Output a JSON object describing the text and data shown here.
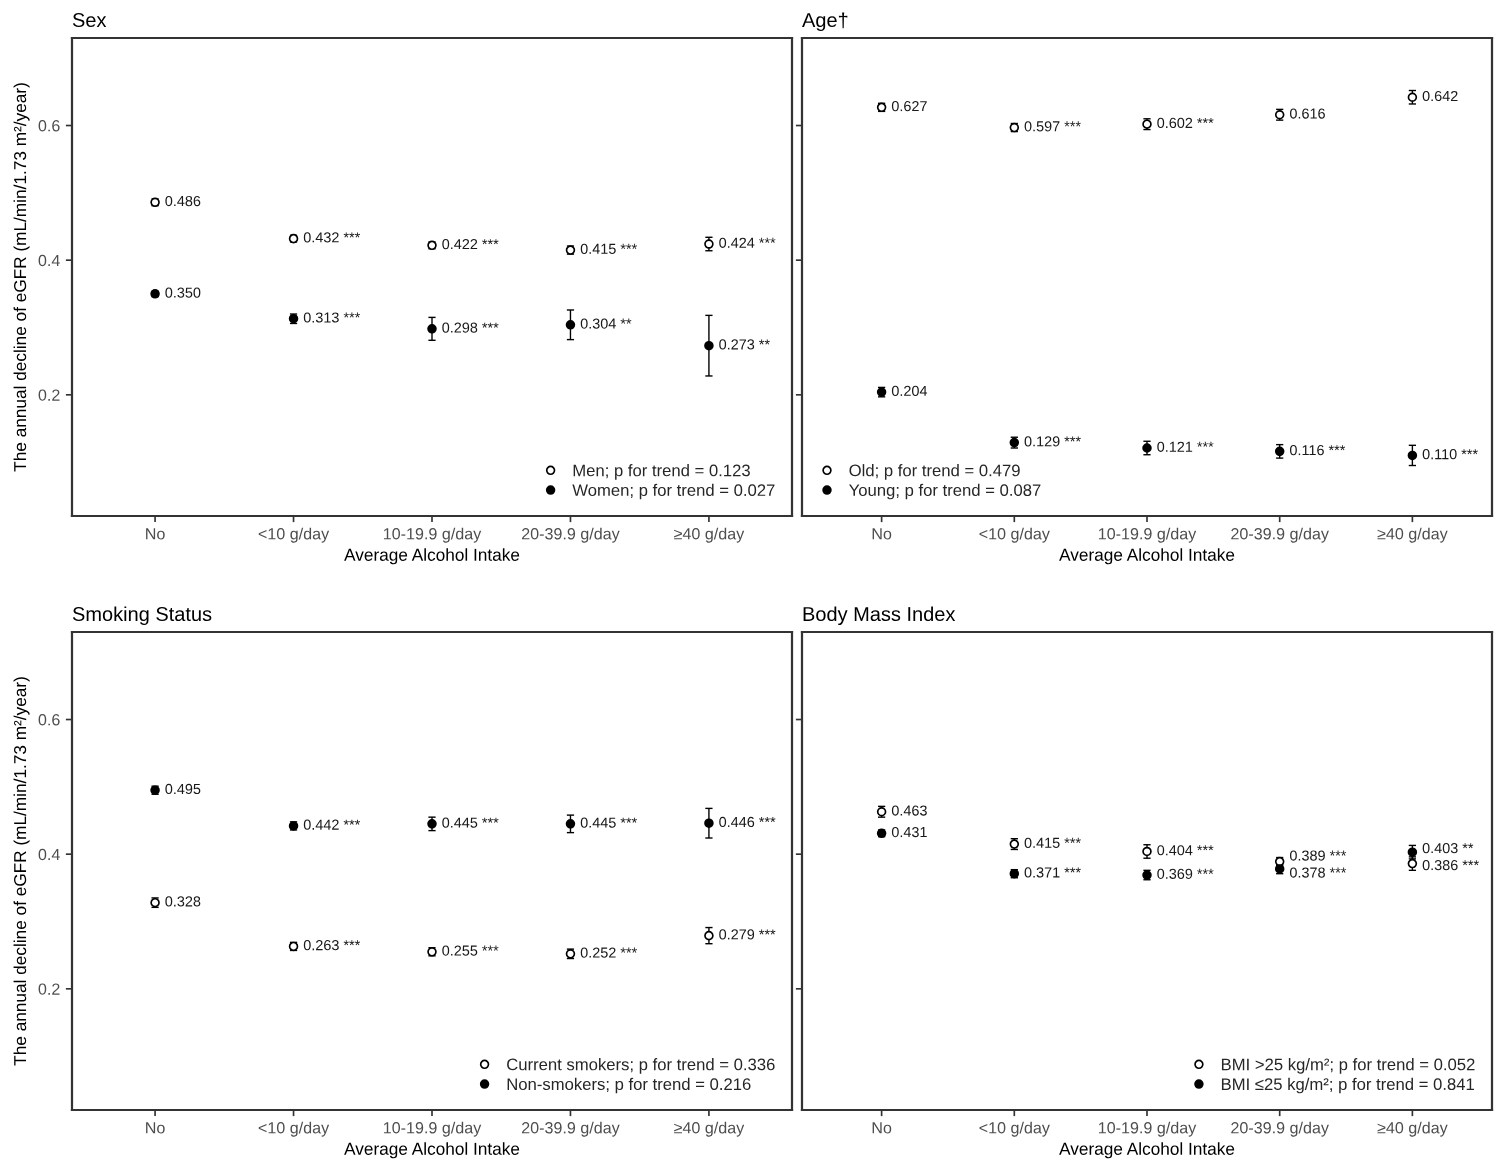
{
  "chart_data": [
    {
      "type": "scatter",
      "title": "Sex",
      "xlabel": "Average Alcohol Intake",
      "ylabel": "The annual decline of eGFR (mL/min/1.73 m²/year)",
      "categories": [
        "No",
        "<10 g/day",
        "10-19.9 g/day",
        "20-39.9 g/day",
        "≥40 g/day"
      ],
      "ylim": [
        0.02,
        0.73
      ],
      "yticks": [
        0.2,
        0.4,
        0.6
      ],
      "legend": "bottom right",
      "marker": "circle",
      "series": [
        {
          "name": "Men; p for trend = 0.123",
          "color": "#ffffff",
          "values": [
            0.486,
            0.432,
            0.422,
            0.415,
            0.424
          ],
          "errors": [
            0.005,
            0.005,
            0.005,
            0.006,
            0.01
          ],
          "value_labels": [
            "0.486",
            "0.432 ***",
            "0.422 ***",
            "0.415 ***",
            "0.424 ***"
          ]
        },
        {
          "name": "Women; p for trend = 0.027",
          "color": "#000000",
          "values": [
            0.35,
            0.313,
            0.298,
            0.304,
            0.273
          ],
          "errors": [
            0.004,
            0.007,
            0.017,
            0.022,
            0.045
          ],
          "value_labels": [
            "0.350",
            "0.313 ***",
            "0.298 ***",
            "0.304 **",
            "0.273 **"
          ]
        }
      ]
    },
    {
      "type": "scatter",
      "title": "Age†",
      "xlabel": "Average Alcohol Intake",
      "categories": [
        "No",
        "<10 g/day",
        "10-19.9 g/day",
        "20-39.9 g/day",
        "≥40 g/day"
      ],
      "ylim": [
        0.02,
        0.73
      ],
      "yticks": [
        0.2,
        0.4,
        0.6
      ],
      "tick_labels": "x",
      "legend": "bottom left",
      "marker": "circle",
      "series": [
        {
          "name": "Old; p for trend = 0.479",
          "color": "#ffffff",
          "values": [
            0.627,
            0.597,
            0.602,
            0.616,
            0.642
          ],
          "errors": [
            0.006,
            0.006,
            0.008,
            0.008,
            0.01
          ],
          "value_labels": [
            "0.627",
            "0.597 ***",
            "0.602 ***",
            "0.616",
            "0.642"
          ]
        },
        {
          "name": "Young; p for trend = 0.087",
          "color": "#000000",
          "values": [
            0.204,
            0.129,
            0.121,
            0.116,
            0.11
          ],
          "errors": [
            0.007,
            0.008,
            0.01,
            0.01,
            0.015
          ],
          "value_labels": [
            "0.204",
            "0.129 ***",
            "0.121 ***",
            "0.116 ***",
            "0.110 ***"
          ]
        }
      ]
    },
    {
      "type": "scatter",
      "title": "Smoking Status",
      "xlabel": "Average Alcohol Intake",
      "ylabel": "The annual decline of eGFR (mL/min/1.73 m²/year)",
      "categories": [
        "No",
        "<10 g/day",
        "10-19.9 g/day",
        "20-39.9 g/day",
        "≥40 g/day"
      ],
      "ylim": [
        0.02,
        0.73
      ],
      "yticks": [
        0.2,
        0.4,
        0.6
      ],
      "legend": "bottom right",
      "marker": "circle",
      "series": [
        {
          "name": "Current smokers; p for trend = 0.336",
          "color": "#ffffff",
          "values": [
            0.328,
            0.263,
            0.255,
            0.252,
            0.279
          ],
          "errors": [
            0.007,
            0.006,
            0.006,
            0.007,
            0.012
          ],
          "value_labels": [
            "0.328",
            "0.263 ***",
            "0.255 ***",
            "0.252 ***",
            "0.279 ***"
          ]
        },
        {
          "name": "Non-smokers; p for trend = 0.216",
          "color": "#000000",
          "values": [
            0.495,
            0.442,
            0.445,
            0.445,
            0.446
          ],
          "errors": [
            0.006,
            0.006,
            0.01,
            0.013,
            0.022
          ],
          "value_labels": [
            "0.495",
            "0.442 ***",
            "0.445 ***",
            "0.445 ***",
            "0.446 ***"
          ]
        }
      ]
    },
    {
      "type": "scatter",
      "title": "Body Mass Index",
      "xlabel": "Average Alcohol Intake",
      "categories": [
        "No",
        "<10 g/day",
        "10-19.9 g/day",
        "20-39.9 g/day",
        "≥40 g/day"
      ],
      "ylim": [
        0.02,
        0.73
      ],
      "yticks": [
        0.2,
        0.4,
        0.6
      ],
      "tick_labels": "x",
      "legend": "bottom right",
      "marker": "circle",
      "series": [
        {
          "name": "BMI >25 kg/m²; p for trend = 0.052",
          "color": "#ffffff",
          "values": [
            0.463,
            0.415,
            0.404,
            0.389,
            0.386
          ],
          "errors": [
            0.008,
            0.008,
            0.01,
            0.006,
            0.01
          ],
          "value_labels": [
            "0.463",
            "0.415 ***",
            "0.404 ***",
            "0.389 ***",
            "0.386 ***"
          ]
        },
        {
          "name": "BMI ≤25 kg/m²; p for trend = 0.841",
          "color": "#000000",
          "values": [
            0.431,
            0.371,
            0.369,
            0.378,
            0.403
          ],
          "errors": [
            0.005,
            0.006,
            0.007,
            0.007,
            0.01
          ],
          "value_labels": [
            "0.431",
            "0.371 ***",
            "0.369 ***",
            "0.378 ***",
            "0.403 **"
          ]
        }
      ]
    }
  ]
}
